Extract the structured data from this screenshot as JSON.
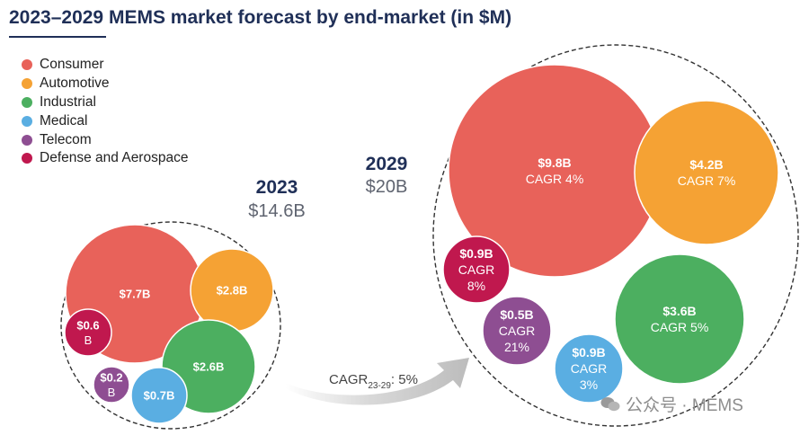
{
  "title": "2023–2029 MEMS market forecast by end-market (in $M)",
  "colors": {
    "title": "#1f2f57",
    "Consumer": "#e8625a",
    "Automotive": "#f5a234",
    "Industrial": "#4caf60",
    "Medical": "#5aaee2",
    "Telecom": "#8e4e92",
    "Defense and Aerospace": "#c0184e"
  },
  "legend": [
    {
      "label": "Consumer",
      "color": "#e8625a"
    },
    {
      "label": "Automotive",
      "color": "#f5a234"
    },
    {
      "label": "Industrial",
      "color": "#4caf60"
    },
    {
      "label": "Medical",
      "color": "#5aaee2"
    },
    {
      "label": "Telecom",
      "color": "#8e4e92"
    },
    {
      "label": "Defense and Aerospace",
      "color": "#c0184e"
    }
  ],
  "arrow": {
    "label": "CAGR",
    "subscript": "23-29",
    "value": ": 5%"
  },
  "watermark": "公众号 · MEMS",
  "chart_data": [
    {
      "type": "bubble",
      "year": "2023",
      "total_label": "$14.6B",
      "total": 14.6,
      "unit": "$B",
      "bubbles": [
        {
          "segment": "Consumer",
          "value": 7.7,
          "lines": [
            "$7.7B"
          ]
        },
        {
          "segment": "Automotive",
          "value": 2.8,
          "lines": [
            "$2.8B"
          ]
        },
        {
          "segment": "Industrial",
          "value": 2.6,
          "lines": [
            "$2.6B"
          ]
        },
        {
          "segment": "Medical",
          "value": 0.7,
          "lines": [
            "$0.7B"
          ]
        },
        {
          "segment": "Telecom",
          "value": 0.2,
          "lines": [
            "$0.2",
            "B"
          ]
        },
        {
          "segment": "Defense and Aerospace",
          "value": 0.6,
          "lines": [
            "$0.6",
            "B"
          ]
        }
      ]
    },
    {
      "type": "bubble",
      "year": "2029",
      "total_label": "$20B",
      "total": 20,
      "unit": "$B",
      "bubbles": [
        {
          "segment": "Consumer",
          "value": 9.8,
          "cagr": "4%",
          "lines": [
            "$9.8B",
            "CAGR 4%"
          ]
        },
        {
          "segment": "Automotive",
          "value": 4.2,
          "cagr": "7%",
          "lines": [
            "$4.2B",
            "CAGR 7%"
          ]
        },
        {
          "segment": "Industrial",
          "value": 3.6,
          "cagr": "5%",
          "lines": [
            "$3.6B",
            "CAGR 5%"
          ]
        },
        {
          "segment": "Medical",
          "value": 0.9,
          "cagr": "3%",
          "lines": [
            "$0.9B",
            "CAGR",
            "3%"
          ]
        },
        {
          "segment": "Telecom",
          "value": 0.5,
          "cagr": "21%",
          "lines": [
            "$0.5B",
            "CAGR",
            "21%"
          ]
        },
        {
          "segment": "Defense and Aerospace",
          "value": 0.9,
          "cagr": "8%",
          "lines": [
            "$0.9B",
            "CAGR",
            "8%"
          ]
        }
      ]
    }
  ]
}
